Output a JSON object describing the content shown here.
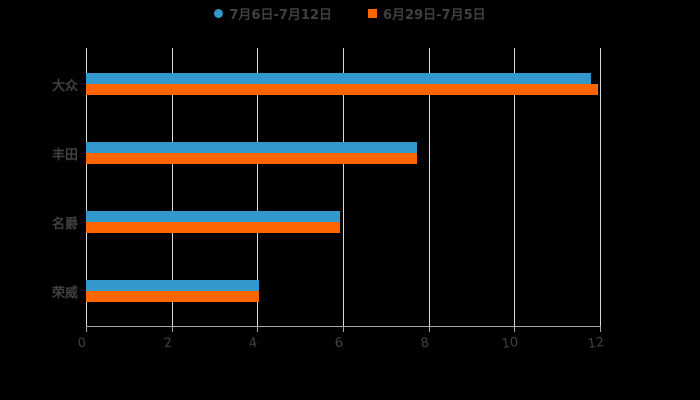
{
  "chart_data": {
    "type": "bar",
    "orientation": "horizontal",
    "title": "",
    "categories": [
      "大众",
      "丰田",
      "名爵",
      "荣威"
    ],
    "series": [
      {
        "name": "7月6日-7月12日",
        "color": "#3399cc",
        "values": [
          11.8,
          7.73,
          5.93,
          4.03
        ]
      },
      {
        "name": "6月29日-7月5日",
        "color": "#ff6600",
        "values": [
          11.95,
          7.73,
          5.93,
          4.03
        ]
      }
    ],
    "xlabel": "",
    "ylabel": "",
    "xlim": [
      0,
      12
    ],
    "xticks": [
      "0",
      "2",
      "4",
      "6",
      "8",
      "10",
      "12"
    ],
    "grid": true,
    "legend_position": "top"
  },
  "legend": {
    "series1": "7月6日-7月12日",
    "series2": "6月29日-7月5日"
  },
  "colors": {
    "series1": "#3399cc",
    "series2": "#ff6600",
    "background": "#000000",
    "text": "#404040"
  }
}
